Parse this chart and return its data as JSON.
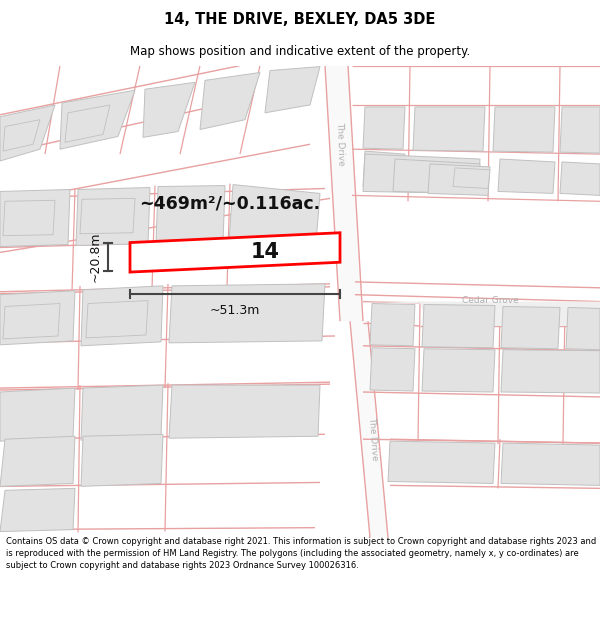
{
  "title": "14, THE DRIVE, BEXLEY, DA5 3DE",
  "subtitle": "Map shows position and indicative extent of the property.",
  "footer": "Contains OS data © Crown copyright and database right 2021. This information is subject to Crown copyright and database rights 2023 and is reproduced with the permission of HM Land Registry. The polygons (including the associated geometry, namely x, y co-ordinates) are subject to Crown copyright and database rights 2023 Ordnance Survey 100026316.",
  "bg_color": "#ffffff",
  "map_bg": "#f7f7f7",
  "building_fill": "#e2e2e2",
  "building_edge": "#c0c0c0",
  "road_line_color": "#e8a0a0",
  "highlight_color": "#ff0000",
  "dimension_color": "#444444",
  "area_text": "~469m²/~0.116ac.",
  "label_14": "14",
  "dim_width": "~51.3m",
  "dim_height": "~20.8m",
  "street_label_drive1": "The Drive",
  "street_label_drive2": "The Drive",
  "street_label_cedar": "Cedar Grove"
}
